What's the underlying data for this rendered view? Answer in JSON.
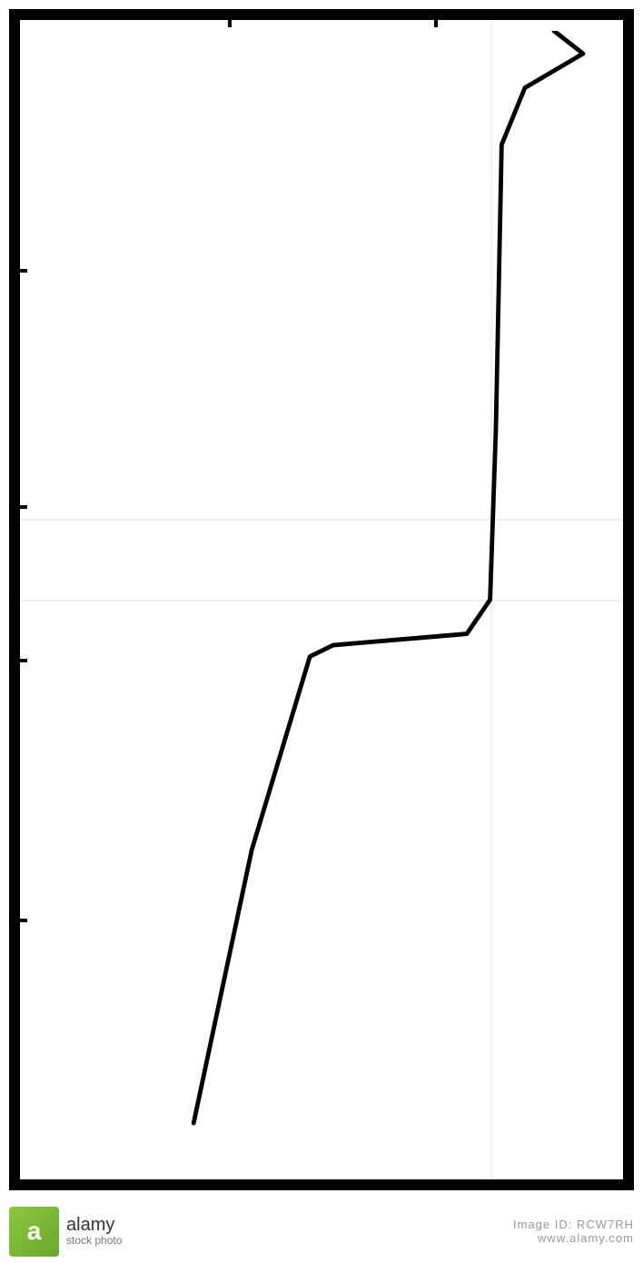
{
  "chart": {
    "type": "line",
    "frame": {
      "border_color": "#000000",
      "border_width": 12,
      "background_color": "#ffffff"
    },
    "ticks": {
      "top": [
        0.35,
        0.68
      ],
      "left": [
        0.22,
        0.42,
        0.55,
        0.77
      ],
      "color": "#000000",
      "length": 20,
      "width": 4
    },
    "faint_grid": {
      "vertical": [
        0.78
      ],
      "horizontal": [
        0.43,
        0.5
      ],
      "color": "#f0f0f0",
      "width": 2
    },
    "line_data": {
      "points": [
        {
          "x": 0.28,
          "y": 0.96
        },
        {
          "x": 0.38,
          "y": 0.72
        },
        {
          "x": 0.48,
          "y": 0.55
        },
        {
          "x": 0.52,
          "y": 0.54
        },
        {
          "x": 0.75,
          "y": 0.53
        },
        {
          "x": 0.79,
          "y": 0.5
        },
        {
          "x": 0.8,
          "y": 0.35
        },
        {
          "x": 0.81,
          "y": 0.1
        },
        {
          "x": 0.85,
          "y": 0.05
        },
        {
          "x": 0.95,
          "y": 0.02
        },
        {
          "x": 0.9,
          "y": 0.0
        }
      ],
      "stroke_color": "#000000",
      "stroke_width": 5
    }
  },
  "watermark": {
    "logo_letter": "a",
    "logo_main": "alamy",
    "logo_sub": "stock photo",
    "image_id": "Image ID: RCW7RH",
    "domain": "www.alamy.com"
  }
}
